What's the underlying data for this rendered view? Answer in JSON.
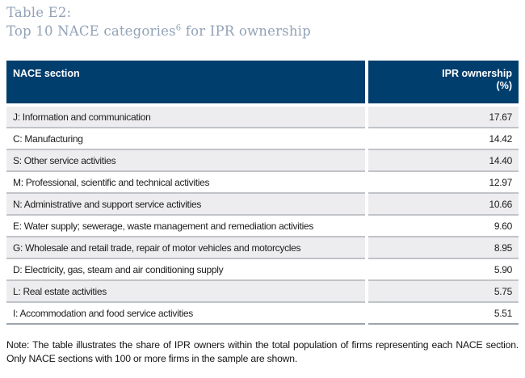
{
  "title": {
    "line1": "Table E2:",
    "line2_prefix": "Top 10 NACE categories",
    "footnote_ref": "6",
    "line2_suffix": " for IPR ownership"
  },
  "table": {
    "columns": {
      "nace": "NACE section",
      "ipr_line1": "IPR ownership",
      "ipr_line2": "(%)"
    },
    "rows": [
      {
        "label": "J: Information and communication",
        "value": "17.67"
      },
      {
        "label": "C: Manufacturing",
        "value": "14.42"
      },
      {
        "label": "S: Other service activities",
        "value": "14.40"
      },
      {
        "label": "M: Professional, scientific and technical activities",
        "value": "12.97"
      },
      {
        "label": "N: Administrative and support service activities",
        "value": "10.66"
      },
      {
        "label": "E: Water supply; sewerage, waste management and remediation activities",
        "value": "9.60"
      },
      {
        "label": "G: Wholesale and retail trade, repair of motor vehicles and motorcycles",
        "value": "8.95"
      },
      {
        "label": "D: Electricity, gas, steam and air conditioning supply",
        "value": "5.90"
      },
      {
        "label": "L: Real estate activities",
        "value": "5.75"
      },
      {
        "label": "I: Accommodation and food service activities",
        "value": "5.51"
      }
    ]
  },
  "note": "Note: The table illustrates the share of IPR owners within the total population of firms representing each NACE section. Only NACE sections with 100 or more firms in the sample are shown.",
  "colors": {
    "header_bg": "#003e6d",
    "header_text": "#ffffff",
    "row_alt_bg": "#ededef",
    "row_border": "#c0c3c8",
    "title_text": "#92a2b7",
    "body_text": "#1c1c1c"
  },
  "chart_data": {
    "type": "table",
    "title": "Table E2: Top 10 NACE categories for IPR ownership",
    "columns": [
      "NACE section",
      "IPR ownership (%)"
    ],
    "rows": [
      [
        "J: Information and communication",
        17.67
      ],
      [
        "C: Manufacturing",
        14.42
      ],
      [
        "S: Other service activities",
        14.4
      ],
      [
        "M: Professional, scientific and technical activities",
        12.97
      ],
      [
        "N: Administrative and support service activities",
        10.66
      ],
      [
        "E: Water supply; sewerage, waste management and remediation activities",
        9.6
      ],
      [
        "G: Wholesale and retail trade, repair of motor vehicles and motorcycles",
        8.95
      ],
      [
        "D: Electricity, gas, steam and air conditioning supply",
        5.9
      ],
      [
        "L: Real estate activities",
        5.75
      ],
      [
        "I: Accommodation and food service activities",
        5.51
      ]
    ]
  }
}
